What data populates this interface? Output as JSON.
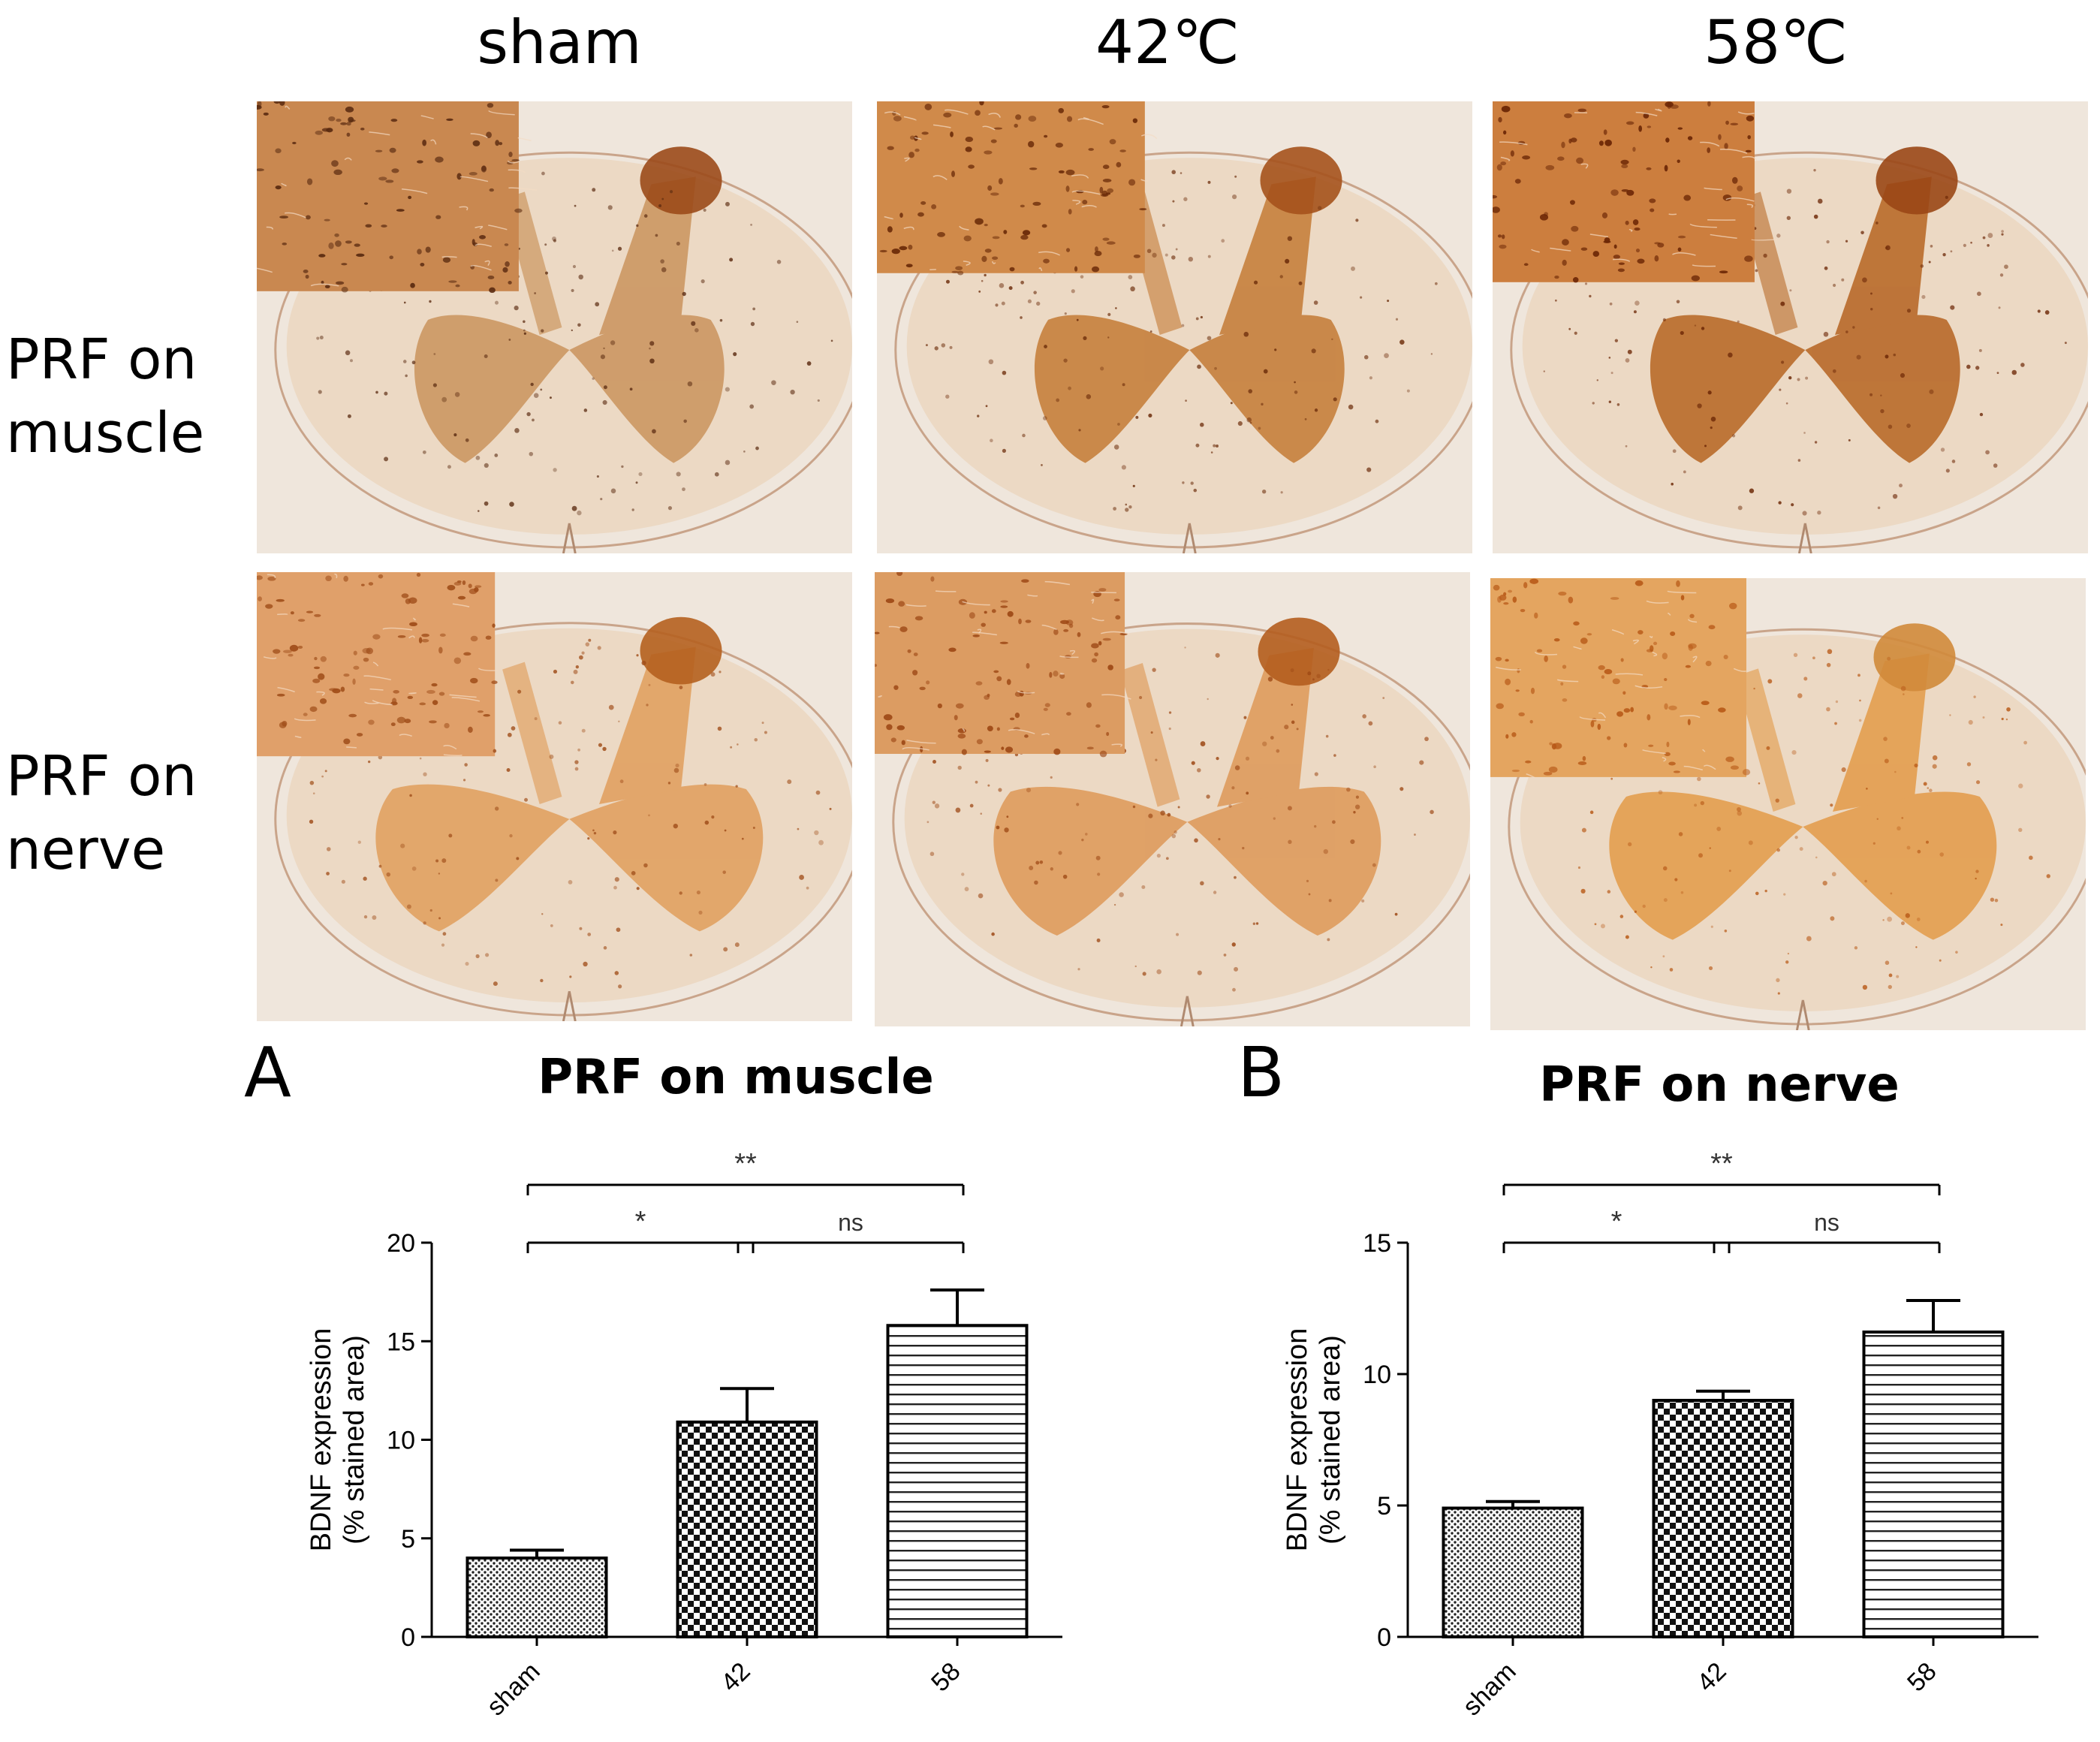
{
  "column_headers": [
    "sham",
    "42℃",
    "58℃"
  ],
  "row_labels": [
    {
      "line1": "PRF on",
      "line2": "muscle"
    },
    {
      "line1": "PRF on",
      "line2": "nerve"
    }
  ],
  "colors": {
    "stain_brown": "#b45a1e",
    "stain_orange": "#d98a45",
    "tissue_pale": "#ecd9c4",
    "background_slide": "#efe6dc"
  },
  "chart_data": [
    {
      "panel": "A",
      "type": "bar",
      "title": "PRF on muscle",
      "categories": [
        "sham",
        "42",
        "58"
      ],
      "values": [
        4.0,
        10.9,
        15.8
      ],
      "errors": [
        0.4,
        1.7,
        1.8
      ],
      "patterns": [
        "fine-dots",
        "checker",
        "horizontal-lines"
      ],
      "ylabel_line1": "BDNF expression",
      "ylabel_line2": "(% stained area)",
      "ylim": [
        0,
        20
      ],
      "yticks": [
        0,
        5,
        10,
        15,
        20
      ],
      "comparisons": [
        {
          "from": 0,
          "to": 2,
          "label": "**",
          "level": 2
        },
        {
          "from": 0,
          "to": 1,
          "label": "*",
          "level": 1
        },
        {
          "from": 1,
          "to": 2,
          "label": "ns",
          "level": 1
        }
      ]
    },
    {
      "panel": "B",
      "type": "bar",
      "title": "PRF on nerve",
      "categories": [
        "sham",
        "42",
        "58"
      ],
      "values": [
        4.9,
        9.0,
        11.6
      ],
      "errors": [
        0.25,
        0.35,
        1.2
      ],
      "patterns": [
        "fine-dots",
        "checker",
        "horizontal-lines"
      ],
      "ylabel_line1": "BDNF expression",
      "ylabel_line2": "(% stained area)",
      "ylim": [
        0,
        15
      ],
      "yticks": [
        0,
        5,
        10,
        15
      ],
      "comparisons": [
        {
          "from": 0,
          "to": 2,
          "label": "**",
          "level": 2
        },
        {
          "from": 0,
          "to": 1,
          "label": "*",
          "level": 1
        },
        {
          "from": 1,
          "to": 2,
          "label": "ns",
          "level": 1
        }
      ]
    }
  ]
}
